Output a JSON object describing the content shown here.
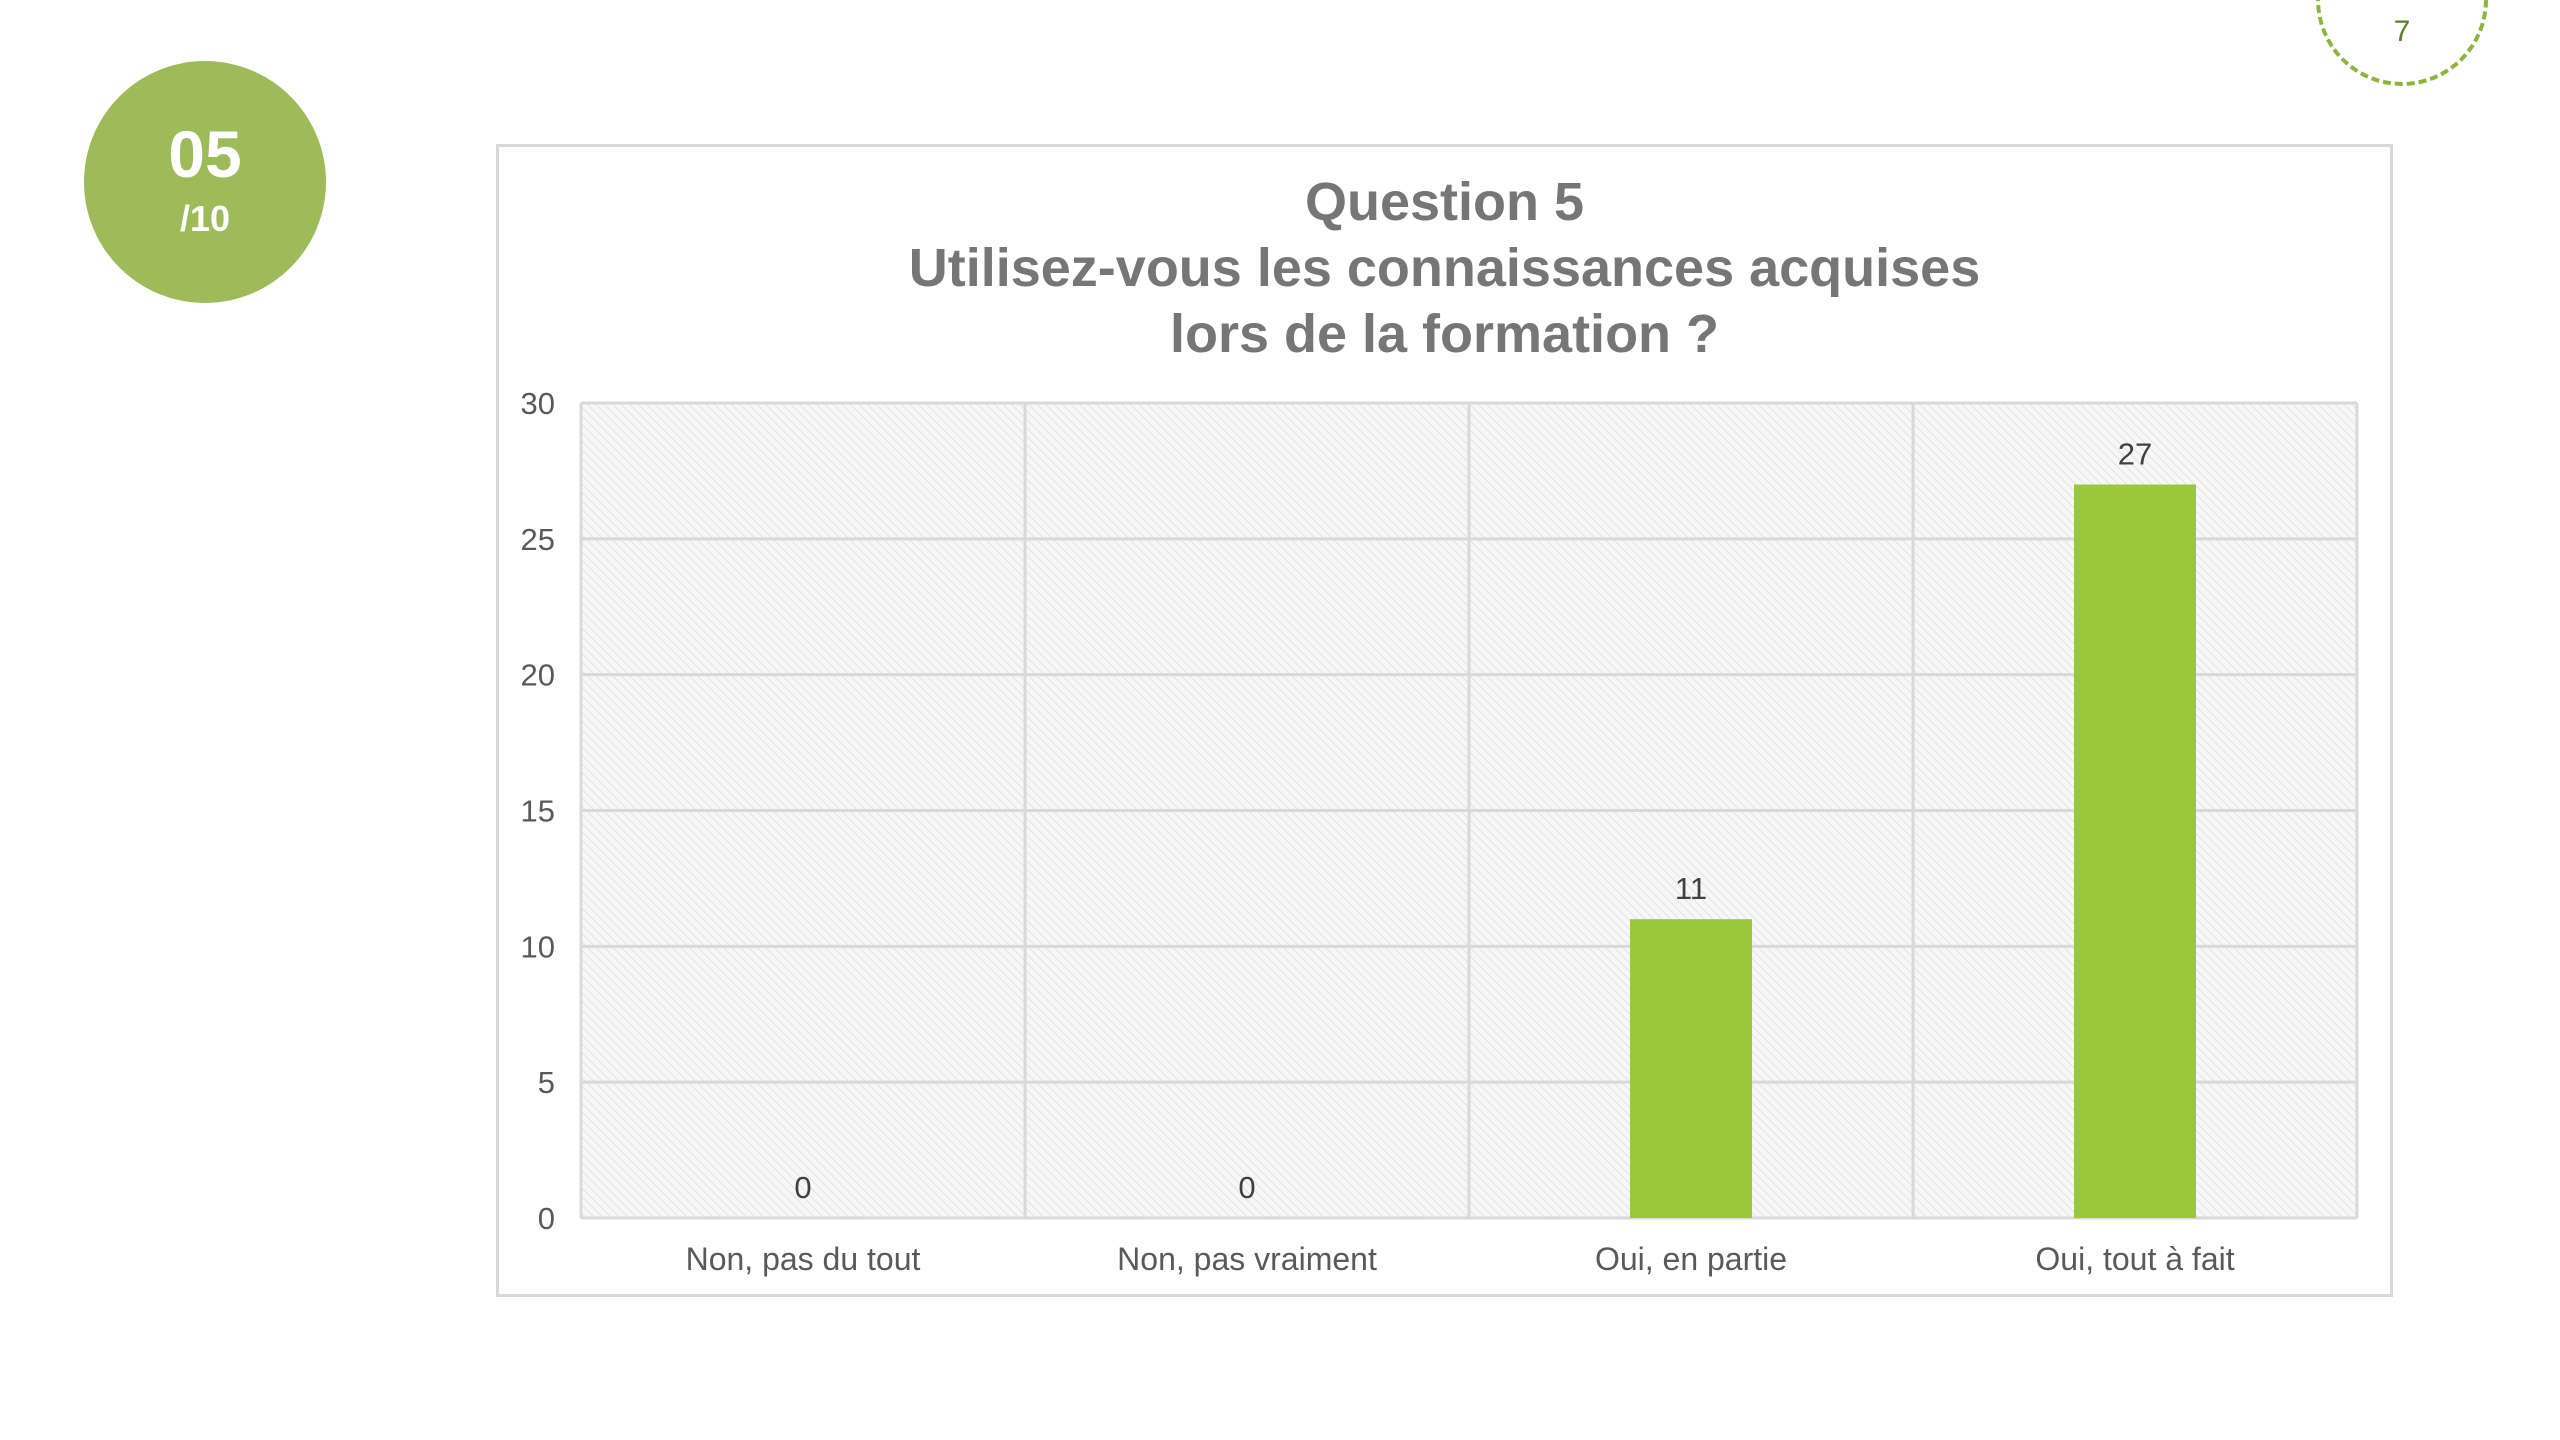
{
  "page": {
    "page_number": "7",
    "question_number": "05",
    "question_total": "/10",
    "accent_color": "#9dbb59"
  },
  "chart_data": {
    "type": "bar",
    "title_lines": [
      "Question 5",
      "Utilisez-vous les connaissances acquises",
      "lors de la formation ?"
    ],
    "categories": [
      "Non, pas du tout",
      "Non, pas vraiment",
      "Oui, en partie",
      "Oui, tout à fait"
    ],
    "values": [
      0,
      0,
      11,
      27
    ],
    "data_labels": [
      "0",
      "0",
      "11",
      "27"
    ],
    "ylim": [
      0,
      30
    ],
    "yticks": [
      0,
      5,
      10,
      15,
      20,
      25,
      30
    ],
    "grid": true,
    "bar_color": "#99c93b",
    "xlabel": "",
    "ylabel": ""
  }
}
